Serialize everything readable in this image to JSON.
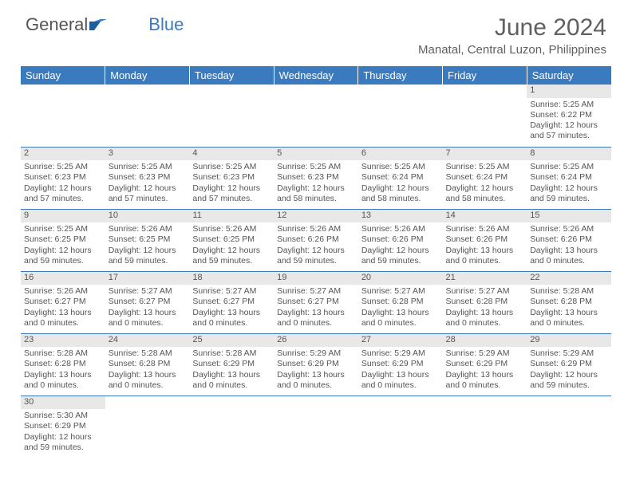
{
  "logo": {
    "text1": "General",
    "text2": "Blue"
  },
  "title": "June 2024",
  "location": "Manatal, Central Luzon, Philippines",
  "colors": {
    "header_bg": "#3a7bbf",
    "header_text": "#ffffff",
    "daynum_bg": "#e8e8e8",
    "row_border": "#3a7bbf",
    "body_text": "#555555",
    "background": "#ffffff"
  },
  "calendar": {
    "day_headers": [
      "Sunday",
      "Monday",
      "Tuesday",
      "Wednesday",
      "Thursday",
      "Friday",
      "Saturday"
    ],
    "weeks": [
      [
        null,
        null,
        null,
        null,
        null,
        null,
        {
          "n": "1",
          "sunrise": "Sunrise: 5:25 AM",
          "sunset": "Sunset: 6:22 PM",
          "daylight": "Daylight: 12 hours and 57 minutes."
        }
      ],
      [
        {
          "n": "2",
          "sunrise": "Sunrise: 5:25 AM",
          "sunset": "Sunset: 6:23 PM",
          "daylight": "Daylight: 12 hours and 57 minutes."
        },
        {
          "n": "3",
          "sunrise": "Sunrise: 5:25 AM",
          "sunset": "Sunset: 6:23 PM",
          "daylight": "Daylight: 12 hours and 57 minutes."
        },
        {
          "n": "4",
          "sunrise": "Sunrise: 5:25 AM",
          "sunset": "Sunset: 6:23 PM",
          "daylight": "Daylight: 12 hours and 57 minutes."
        },
        {
          "n": "5",
          "sunrise": "Sunrise: 5:25 AM",
          "sunset": "Sunset: 6:23 PM",
          "daylight": "Daylight: 12 hours and 58 minutes."
        },
        {
          "n": "6",
          "sunrise": "Sunrise: 5:25 AM",
          "sunset": "Sunset: 6:24 PM",
          "daylight": "Daylight: 12 hours and 58 minutes."
        },
        {
          "n": "7",
          "sunrise": "Sunrise: 5:25 AM",
          "sunset": "Sunset: 6:24 PM",
          "daylight": "Daylight: 12 hours and 58 minutes."
        },
        {
          "n": "8",
          "sunrise": "Sunrise: 5:25 AM",
          "sunset": "Sunset: 6:24 PM",
          "daylight": "Daylight: 12 hours and 59 minutes."
        }
      ],
      [
        {
          "n": "9",
          "sunrise": "Sunrise: 5:25 AM",
          "sunset": "Sunset: 6:25 PM",
          "daylight": "Daylight: 12 hours and 59 minutes."
        },
        {
          "n": "10",
          "sunrise": "Sunrise: 5:26 AM",
          "sunset": "Sunset: 6:25 PM",
          "daylight": "Daylight: 12 hours and 59 minutes."
        },
        {
          "n": "11",
          "sunrise": "Sunrise: 5:26 AM",
          "sunset": "Sunset: 6:25 PM",
          "daylight": "Daylight: 12 hours and 59 minutes."
        },
        {
          "n": "12",
          "sunrise": "Sunrise: 5:26 AM",
          "sunset": "Sunset: 6:26 PM",
          "daylight": "Daylight: 12 hours and 59 minutes."
        },
        {
          "n": "13",
          "sunrise": "Sunrise: 5:26 AM",
          "sunset": "Sunset: 6:26 PM",
          "daylight": "Daylight: 12 hours and 59 minutes."
        },
        {
          "n": "14",
          "sunrise": "Sunrise: 5:26 AM",
          "sunset": "Sunset: 6:26 PM",
          "daylight": "Daylight: 13 hours and 0 minutes."
        },
        {
          "n": "15",
          "sunrise": "Sunrise: 5:26 AM",
          "sunset": "Sunset: 6:26 PM",
          "daylight": "Daylight: 13 hours and 0 minutes."
        }
      ],
      [
        {
          "n": "16",
          "sunrise": "Sunrise: 5:26 AM",
          "sunset": "Sunset: 6:27 PM",
          "daylight": "Daylight: 13 hours and 0 minutes."
        },
        {
          "n": "17",
          "sunrise": "Sunrise: 5:27 AM",
          "sunset": "Sunset: 6:27 PM",
          "daylight": "Daylight: 13 hours and 0 minutes."
        },
        {
          "n": "18",
          "sunrise": "Sunrise: 5:27 AM",
          "sunset": "Sunset: 6:27 PM",
          "daylight": "Daylight: 13 hours and 0 minutes."
        },
        {
          "n": "19",
          "sunrise": "Sunrise: 5:27 AM",
          "sunset": "Sunset: 6:27 PM",
          "daylight": "Daylight: 13 hours and 0 minutes."
        },
        {
          "n": "20",
          "sunrise": "Sunrise: 5:27 AM",
          "sunset": "Sunset: 6:28 PM",
          "daylight": "Daylight: 13 hours and 0 minutes."
        },
        {
          "n": "21",
          "sunrise": "Sunrise: 5:27 AM",
          "sunset": "Sunset: 6:28 PM",
          "daylight": "Daylight: 13 hours and 0 minutes."
        },
        {
          "n": "22",
          "sunrise": "Sunrise: 5:28 AM",
          "sunset": "Sunset: 6:28 PM",
          "daylight": "Daylight: 13 hours and 0 minutes."
        }
      ],
      [
        {
          "n": "23",
          "sunrise": "Sunrise: 5:28 AM",
          "sunset": "Sunset: 6:28 PM",
          "daylight": "Daylight: 13 hours and 0 minutes."
        },
        {
          "n": "24",
          "sunrise": "Sunrise: 5:28 AM",
          "sunset": "Sunset: 6:28 PM",
          "daylight": "Daylight: 13 hours and 0 minutes."
        },
        {
          "n": "25",
          "sunrise": "Sunrise: 5:28 AM",
          "sunset": "Sunset: 6:29 PM",
          "daylight": "Daylight: 13 hours and 0 minutes."
        },
        {
          "n": "26",
          "sunrise": "Sunrise: 5:29 AM",
          "sunset": "Sunset: 6:29 PM",
          "daylight": "Daylight: 13 hours and 0 minutes."
        },
        {
          "n": "27",
          "sunrise": "Sunrise: 5:29 AM",
          "sunset": "Sunset: 6:29 PM",
          "daylight": "Daylight: 13 hours and 0 minutes."
        },
        {
          "n": "28",
          "sunrise": "Sunrise: 5:29 AM",
          "sunset": "Sunset: 6:29 PM",
          "daylight": "Daylight: 13 hours and 0 minutes."
        },
        {
          "n": "29",
          "sunrise": "Sunrise: 5:29 AM",
          "sunset": "Sunset: 6:29 PM",
          "daylight": "Daylight: 12 hours and 59 minutes."
        }
      ],
      [
        {
          "n": "30",
          "sunrise": "Sunrise: 5:30 AM",
          "sunset": "Sunset: 6:29 PM",
          "daylight": "Daylight: 12 hours and 59 minutes."
        },
        null,
        null,
        null,
        null,
        null,
        null
      ]
    ]
  }
}
